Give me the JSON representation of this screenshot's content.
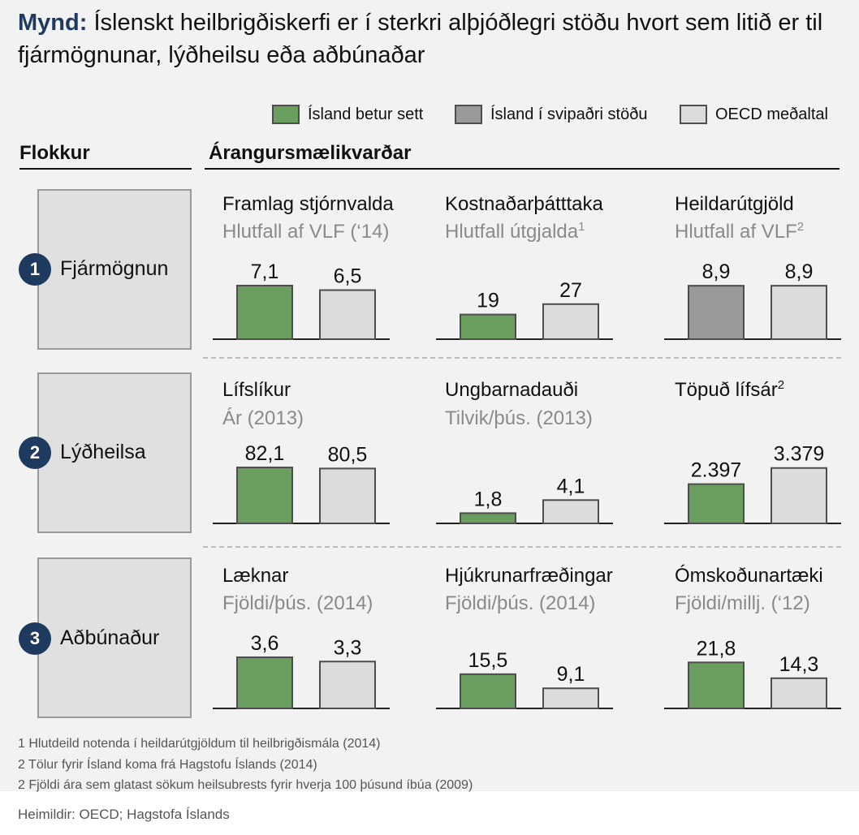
{
  "title": {
    "prefix": "Mynd:",
    "text": "Íslenskt heilbrigðiskerfi er í sterkri alþjóðlegri stöðu hvort sem litið er til fjármögnunar, lýðheilsu eða aðbúnaðar"
  },
  "legend": [
    {
      "label": "Ísland betur sett",
      "color": "#6a9e5f"
    },
    {
      "label": "Ísland í svipaðri stöðu",
      "color": "#999999"
    },
    {
      "label": "OECD meðaltal",
      "color": "#dcdcdc"
    }
  ],
  "headers": {
    "category": "Flokkur",
    "metrics": "Árangursmælikvarðar"
  },
  "colors": {
    "better": "#6a9e5f",
    "similar": "#999999",
    "oecd": "#dcdcdc",
    "navy": "#1e3a5f"
  },
  "chart_data": [
    {
      "type": "bar",
      "category": "Fjármögnun",
      "category_number": "1",
      "title": "Framlag stjórnvalda",
      "subtitle": "Hlutfall af VLF (‘14)",
      "sup": "",
      "series": [
        "Ísland",
        "OECD meðaltal"
      ],
      "values": [
        7.1,
        6.5
      ],
      "labels": [
        "7,1",
        "6,5"
      ],
      "iceland_status": "better"
    },
    {
      "type": "bar",
      "category": "Fjármögnun",
      "category_number": "1",
      "title": "Kostnaðarþátttaka",
      "subtitle": "Hlutfall útgjalda",
      "sup": "1",
      "series": [
        "Ísland",
        "OECD meðaltal"
      ],
      "values": [
        19,
        27
      ],
      "labels": [
        "19",
        "27"
      ],
      "iceland_status": "better"
    },
    {
      "type": "bar",
      "category": "Fjármögnun",
      "category_number": "1",
      "title": "Heildarútgjöld",
      "subtitle": "Hlutfall af VLF",
      "sup": "2",
      "series": [
        "Ísland",
        "OECD meðaltal"
      ],
      "values": [
        8.9,
        8.9
      ],
      "labels": [
        "8,9",
        "8,9"
      ],
      "iceland_status": "similar"
    },
    {
      "type": "bar",
      "category": "Lýðheilsa",
      "category_number": "2",
      "title": "Lífslíkur",
      "subtitle": "Ár (2013)",
      "sup": "",
      "series": [
        "Ísland",
        "OECD meðaltal"
      ],
      "values": [
        82.1,
        80.5
      ],
      "labels": [
        "82,1",
        "80,5"
      ],
      "iceland_status": "better"
    },
    {
      "type": "bar",
      "category": "Lýðheilsa",
      "category_number": "2",
      "title": "Ungbarnadauði",
      "subtitle": "Tilvik/þús. (2013)",
      "sup": "",
      "series": [
        "Ísland",
        "OECD meðaltal"
      ],
      "values": [
        1.8,
        4.1
      ],
      "labels": [
        "1,8",
        "4,1"
      ],
      "iceland_status": "better"
    },
    {
      "type": "bar",
      "category": "Lýðheilsa",
      "category_number": "2",
      "title": "Töpuð lífsár",
      "subtitle": "",
      "sup": "2",
      "series": [
        "Ísland",
        "OECD meðaltal"
      ],
      "values": [
        2397,
        3379
      ],
      "labels": [
        "2.397",
        "3.379"
      ],
      "iceland_status": "better"
    },
    {
      "type": "bar",
      "category": "Aðbúnaður",
      "category_number": "3",
      "title": "Læknar",
      "subtitle": "Fjöldi/þús. (2014)",
      "sup": "",
      "series": [
        "Ísland",
        "OECD meðaltal"
      ],
      "values": [
        3.6,
        3.3
      ],
      "labels": [
        "3,6",
        "3,3"
      ],
      "iceland_status": "better"
    },
    {
      "type": "bar",
      "category": "Aðbúnaður",
      "category_number": "3",
      "title": "Hjúkrunarfræðingar",
      "subtitle": "Fjöldi/þús. (2014)",
      "sup": "",
      "series": [
        "Ísland",
        "OECD meðaltal"
      ],
      "values": [
        15.5,
        9.1
      ],
      "labels": [
        "15,5",
        "9,1"
      ],
      "iceland_status": "better"
    },
    {
      "type": "bar",
      "category": "Aðbúnaður",
      "category_number": "3",
      "title": "Ómskoðunartæki",
      "subtitle": "Fjöldi/millj. (‘12)",
      "sup": "",
      "series": [
        "Ísland",
        "OECD meðaltal"
      ],
      "values": [
        21.8,
        14.3
      ],
      "labels": [
        "21,8",
        "14,3"
      ],
      "iceland_status": "better"
    }
  ],
  "footnotes": [
    "1 Hlutdeild notenda í heildarútgjöldum til heilbrigðismála (2014)",
    "2 Tölur fyrir Ísland koma frá Hagstofu Íslands (2014)",
    "2 Fjöldi ára sem glatast sökum heilsubrests fyrir hverja 100 þúsund íbúa (2009)"
  ],
  "source": "Heimildir: OECD; Hagstofa Íslands"
}
